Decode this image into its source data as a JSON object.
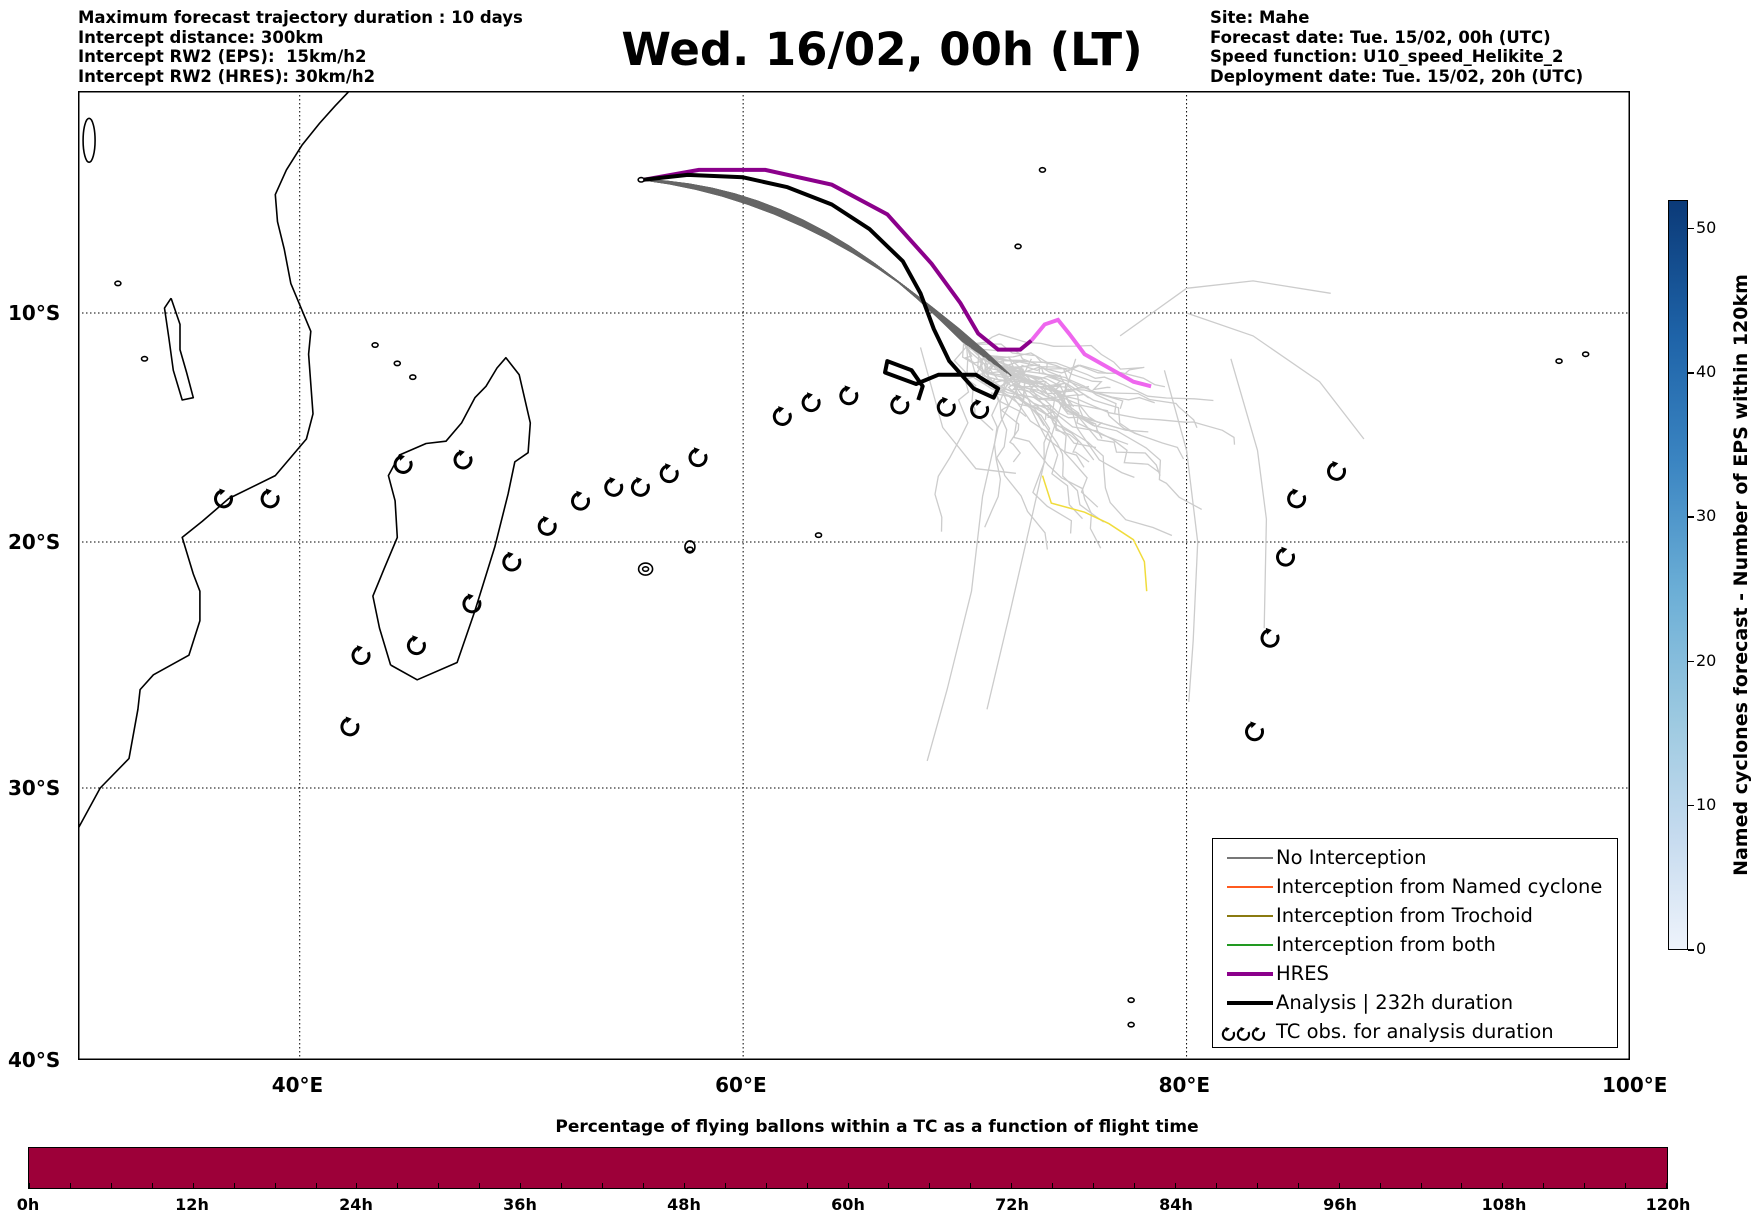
{
  "header": {
    "left_lines": [
      "Maximum forecast trajectory duration : 10 days",
      "Intercept distance: 300km",
      "Intercept RW2 (EPS):  15km/h2",
      "Intercept RW2 (HRES): 30km/h2"
    ],
    "title": "Wed. 16/02, 00h (LT)",
    "right_lines": [
      "Site: Mahe",
      "Forecast date: Tue. 15/02, 00h (UTC)",
      "Speed function: U10_speed_Helikite_2",
      "Deployment date: Tue. 15/02, 20h (UTC)"
    ]
  },
  "map": {
    "lat_labels": [
      "10°S",
      "20°S",
      "30°S",
      "40°S"
    ],
    "lon_labels": [
      "40°E",
      "60°E",
      "80°E",
      "100°E"
    ],
    "colors": {
      "no_interception": "#666666",
      "no_interception_light": "#c8c8c8",
      "named_cyclone": "#ff5a1f",
      "trochoid": "#8a7a10",
      "both": "#229922",
      "hres": "#8b008b",
      "hres_late": "#ee66ee",
      "analysis": "#000000",
      "yellow_track": "#f0dc3c"
    }
  },
  "legend": {
    "items": [
      {
        "label": "No Interception",
        "color": "#777777",
        "width": 1.5
      },
      {
        "label": "Interception from Named cyclone",
        "color": "#ff5a1f",
        "width": 1.5
      },
      {
        "label": "Interception from Trochoid",
        "color": "#8a7a10",
        "width": 1.5
      },
      {
        "label": "Interception from both",
        "color": "#229922",
        "width": 1.5
      },
      {
        "label": "HRES",
        "color": "#8b008b",
        "width": 4
      },
      {
        "label": "Analysis | 232h duration",
        "color": "#000000",
        "width": 4
      },
      {
        "label": "TC obs. for analysis duration",
        "color": "",
        "width": 0
      }
    ]
  },
  "colorbar_right": {
    "label": "Named cyclones forecast - Number of EPS within 120km",
    "ticks": [
      "0",
      "10",
      "20",
      "30",
      "40",
      "50"
    ],
    "range": [
      0,
      52
    ]
  },
  "colorbar_bottom": {
    "title": "Percentage of flying ballons within a TC as a function of flight time",
    "ticks": [
      "0h",
      "12h",
      "24h",
      "36h",
      "48h",
      "60h",
      "72h",
      "84h",
      "96h",
      "108h",
      "120h"
    ],
    "color": "#9d0039"
  },
  "tc_observations": [
    [
      36.6,
      -18.1
    ],
    [
      38.7,
      -18.1
    ],
    [
      44.7,
      -16.6
    ],
    [
      47.4,
      -16.4
    ],
    [
      42.8,
      -24.6
    ],
    [
      45.3,
      -24.2
    ],
    [
      42.3,
      -27.5
    ],
    [
      47.8,
      -22.5
    ],
    [
      49.6,
      -20.8
    ],
    [
      51.2,
      -19.3
    ],
    [
      52.7,
      -18.2
    ],
    [
      54.2,
      -17.6
    ],
    [
      55.4,
      -17.6
    ],
    [
      56.7,
      -17.0
    ],
    [
      58.0,
      -16.3
    ],
    [
      61.8,
      -14.5
    ],
    [
      63.1,
      -13.9
    ],
    [
      64.8,
      -13.6
    ],
    [
      67.1,
      -14.0
    ],
    [
      69.2,
      -14.1
    ],
    [
      70.7,
      -14.2
    ],
    [
      86.8,
      -16.9
    ],
    [
      85.0,
      -18.1
    ],
    [
      84.5,
      -20.6
    ],
    [
      83.8,
      -23.9
    ],
    [
      83.1,
      -27.7
    ]
  ]
}
